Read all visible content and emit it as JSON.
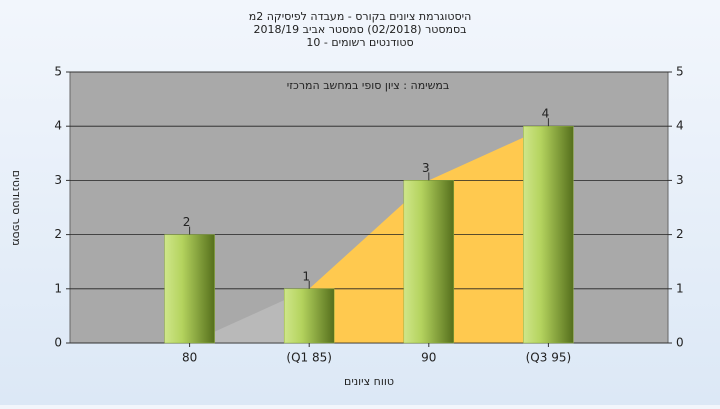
{
  "chart_data": {
    "type": "bar",
    "title": [
      "היסטוגרמת ציונים בקורס - מעבדה לפיסיקה 2מ",
      "בסמסטר (02/2018) סמסטר אביב 2018/19",
      "סטודנטים רשומים - 10"
    ],
    "annotation": "במשימה : ציון סופי במחשב המרכזי",
    "y_label": "מספר סטודנטים",
    "x_label": "טווח ציונים",
    "categories": [
      "80",
      "(Q1 85)",
      "90",
      "(Q3 95)"
    ],
    "values": [
      2,
      1,
      3,
      4
    ],
    "area": {
      "values": [
        0,
        1,
        3,
        4
      ],
      "colors": [
        "#b9b9b9",
        "#ffc94f"
      ]
    },
    "ylim": [
      0,
      5
    ],
    "yticks": [
      0,
      1,
      2,
      3,
      4,
      5
    ],
    "y2lim": [
      0,
      5
    ],
    "y2ticks": [
      0,
      1,
      2,
      3,
      4,
      5
    ],
    "grid": true,
    "color": "#8fb040"
  }
}
